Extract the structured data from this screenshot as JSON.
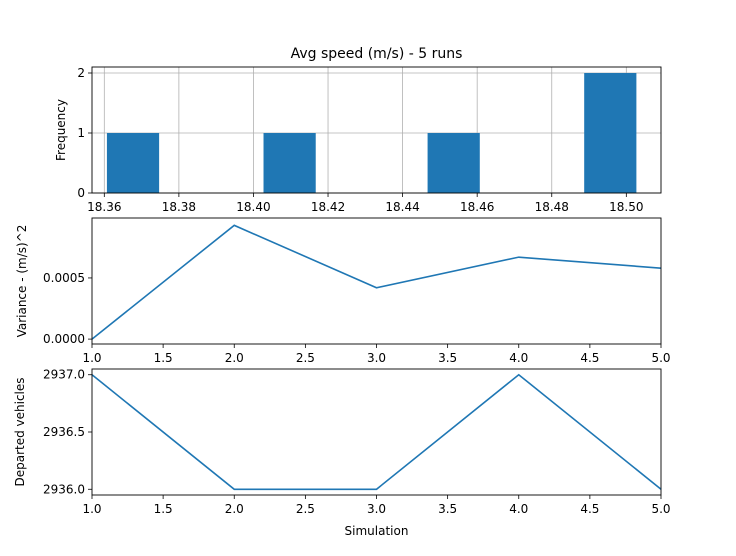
{
  "chart_data": [
    {
      "type": "bar",
      "title": "Avg speed (m/s) - 5 runs",
      "xlabel": "",
      "ylabel": "Frequency",
      "xlim": [
        18.3567,
        18.5093
      ],
      "ylim": [
        0,
        2.1
      ],
      "grid": true,
      "color": "#1f77b4",
      "bins": [
        {
          "x0": 18.3607,
          "x1": 18.3747,
          "count": 1
        },
        {
          "x0": 18.4027,
          "x1": 18.4167,
          "count": 1
        },
        {
          "x0": 18.4467,
          "x1": 18.4607,
          "count": 1
        },
        {
          "x0": 18.4887,
          "x1": 18.5027,
          "count": 2
        }
      ],
      "xticks": [
        18.36,
        18.38,
        18.4,
        18.42,
        18.44,
        18.46,
        18.48,
        18.5
      ],
      "xtick_labels": [
        "18.36",
        "18.38",
        "18.40",
        "18.42",
        "18.44",
        "18.46",
        "18.48",
        "18.50"
      ],
      "yticks": [
        0,
        1,
        2
      ],
      "ytick_labels": [
        "0",
        "1",
        "2"
      ]
    },
    {
      "type": "line",
      "title": "",
      "xlabel": "",
      "ylabel": "Variance - (m/s)^2",
      "xlim": [
        1.0,
        5.0
      ],
      "ylim": [
        -4e-05,
        0.00099
      ],
      "grid": false,
      "color": "#1f77b4",
      "x": [
        1,
        2,
        3,
        4,
        5
      ],
      "y": [
        0.0,
        0.00093,
        0.00042,
        0.00067,
        0.00058
      ],
      "xticks": [
        1.0,
        1.5,
        2.0,
        2.5,
        3.0,
        3.5,
        4.0,
        4.5,
        5.0
      ],
      "xtick_labels": [
        "1.0",
        "1.5",
        "2.0",
        "2.5",
        "3.0",
        "3.5",
        "4.0",
        "4.5",
        "5.0"
      ],
      "yticks": [
        0.0,
        0.0005
      ],
      "ytick_labels": [
        "0.0000",
        "0.0005"
      ]
    },
    {
      "type": "line",
      "title": "",
      "xlabel": "Simulation",
      "ylabel": "Departed vehicles",
      "xlim": [
        1.0,
        5.0
      ],
      "ylim": [
        2935.95,
        2937.05
      ],
      "grid": false,
      "color": "#1f77b4",
      "x": [
        1,
        2,
        3,
        4,
        5
      ],
      "y": [
        2937,
        2936,
        2936,
        2937,
        2936
      ],
      "xticks": [
        1.0,
        1.5,
        2.0,
        2.5,
        3.0,
        3.5,
        4.0,
        4.5,
        5.0
      ],
      "xtick_labels": [
        "1.0",
        "1.5",
        "2.0",
        "2.5",
        "3.0",
        "3.5",
        "4.0",
        "4.5",
        "5.0"
      ],
      "yticks": [
        2936.0,
        2936.5,
        2937.0
      ],
      "ytick_labels": [
        "2936.0",
        "2936.5",
        "2937.0"
      ]
    }
  ]
}
